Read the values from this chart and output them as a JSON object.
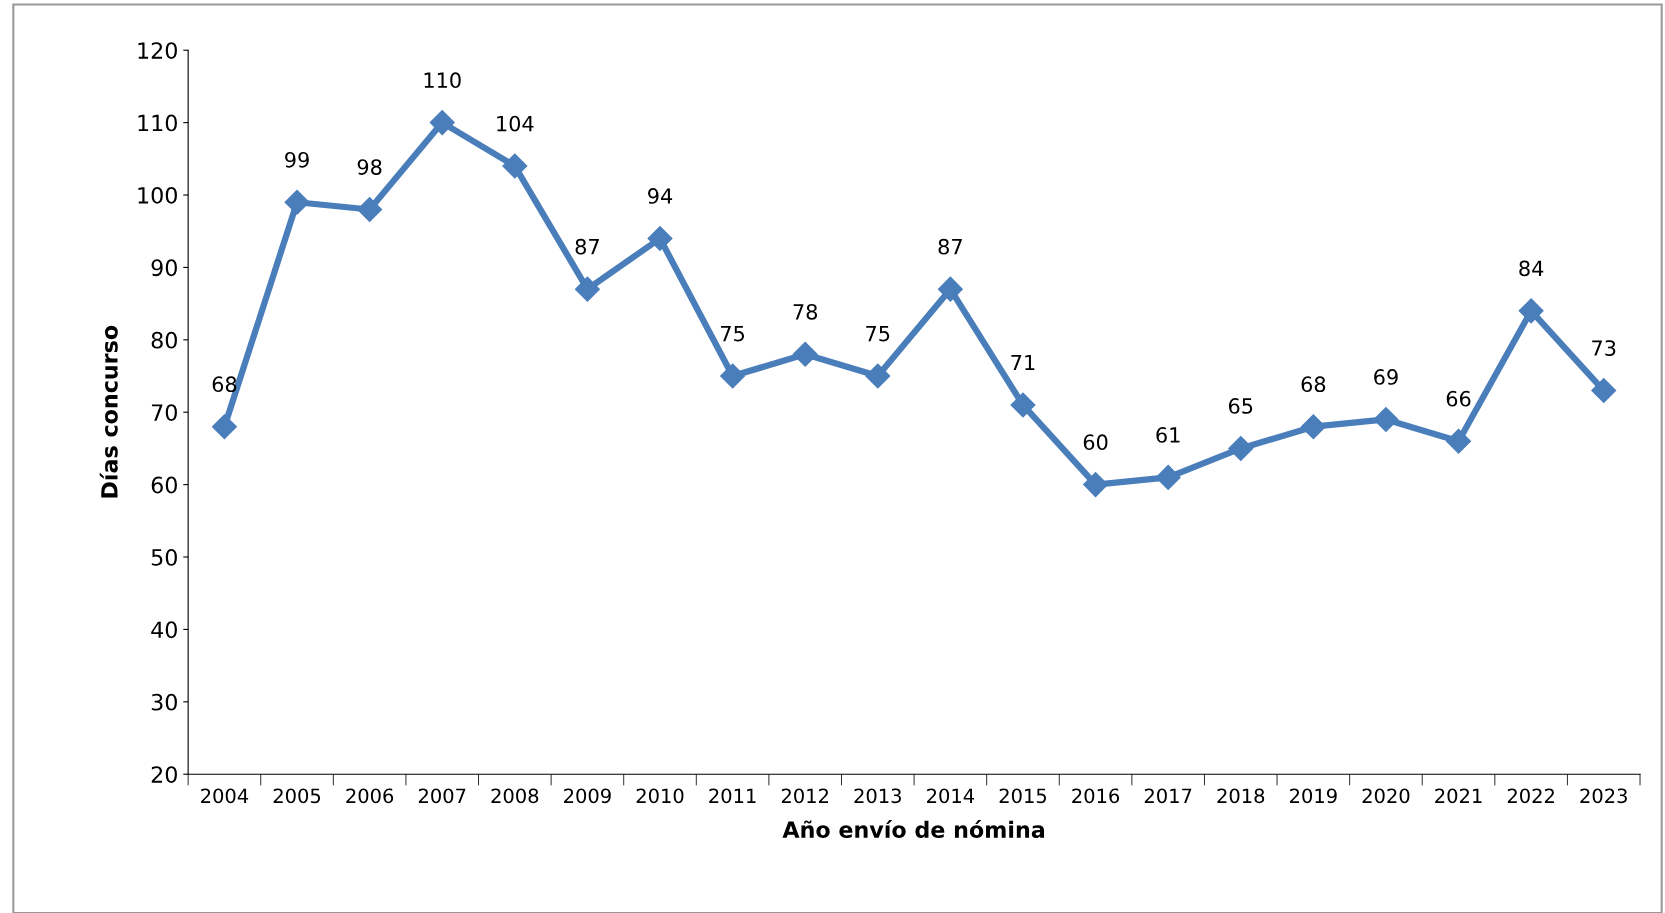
{
  "chart_data": {
    "type": "line",
    "xlabel": "Año envío de nómina",
    "ylabel": "Días concurso",
    "categories": [
      "2004",
      "2005",
      "2006",
      "2007",
      "2008",
      "2009",
      "2010",
      "2011",
      "2012",
      "2013",
      "2014",
      "2015",
      "2016",
      "2017",
      "2018",
      "2019",
      "2020",
      "2021",
      "2022",
      "2023"
    ],
    "series": [
      {
        "color": "#4a7ebb",
        "values": [
          68,
          99,
          98,
          110,
          104,
          87,
          94,
          75,
          78,
          75,
          87,
          71,
          60,
          61,
          65,
          68,
          69,
          66,
          84,
          73
        ]
      }
    ],
    "ylim": [
      20,
      120
    ],
    "yticks": [
      20,
      30,
      40,
      50,
      60,
      70,
      80,
      90,
      100,
      110,
      120
    ],
    "marker": "diamond",
    "line_style": "solid",
    "grid": false,
    "data_labels": true
  }
}
